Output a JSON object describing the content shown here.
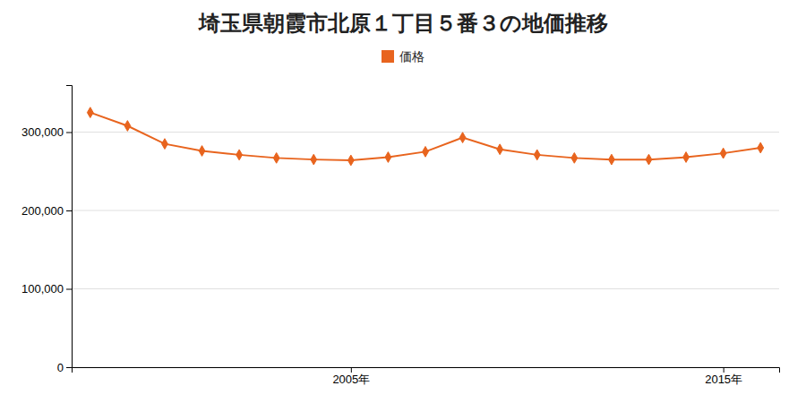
{
  "chart_data": {
    "type": "line",
    "title": "埼玉県朝霞市北原１丁目５番３の地価推移",
    "x": [
      1998,
      1999,
      2000,
      2001,
      2002,
      2003,
      2004,
      2005,
      2006,
      2007,
      2008,
      2009,
      2010,
      2011,
      2012,
      2013,
      2014,
      2015,
      2016
    ],
    "series": [
      {
        "name": "価格",
        "color": "#e8641e",
        "marker": "diamond",
        "values": [
          325000,
          308000,
          285000,
          276000,
          271000,
          267000,
          265000,
          264000,
          268000,
          275000,
          293000,
          278000,
          271000,
          267000,
          265000,
          265000,
          268000,
          273000,
          280000
        ]
      }
    ],
    "xlim": [
      1997.5,
      2016.5
    ],
    "xticks": [
      {
        "value": 2005,
        "label": "2005年"
      },
      {
        "value": 2015,
        "label": "2015年"
      }
    ],
    "ylim": [
      0,
      360000
    ],
    "yticks": [
      0,
      {
        "value": 100000,
        "label": "100,000"
      },
      {
        "value": 200000,
        "label": "200,000"
      },
      {
        "value": 300000,
        "label": "300,000"
      }
    ],
    "grid": "y",
    "legend": "top"
  }
}
